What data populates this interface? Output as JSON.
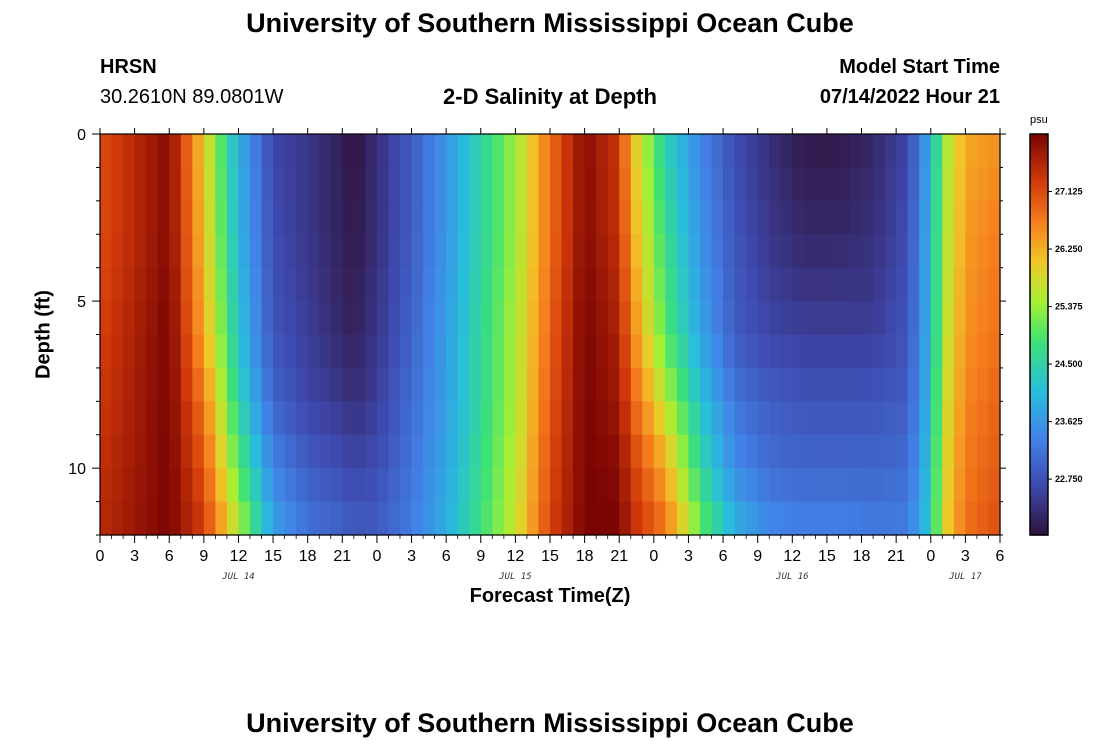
{
  "header": {
    "title": "University of Southern Mississippi Ocean Cube",
    "station": "HRSN",
    "coords": "30.2610N  89.0801W",
    "subtitle": "2-D Salinity at Depth",
    "model_label": "Model Start Time",
    "model_time": "07/14/2022 Hour 21",
    "footer_title": "University of Southern Mississippi Ocean Cube"
  },
  "chart_data": {
    "type": "heatmap",
    "title": "2-D Salinity at Depth",
    "xlabel": "Forecast Time(Z)",
    "ylabel": "Depth (ft)",
    "colorbar_unit": "psu",
    "colorbar_ticks": [
      "27.125",
      "26.250",
      "25.375",
      "24.500",
      "23.625",
      "22.750"
    ],
    "colorbar_tick_values": [
      27.125,
      26.25,
      25.375,
      24.5,
      23.625,
      22.75
    ],
    "value_range": [
      21.9,
      28.0
    ],
    "x_range_hours": [
      0,
      78
    ],
    "y_range_ft": [
      0,
      12
    ],
    "x_tick_labels": [
      "0",
      "3",
      "6",
      "9",
      "12",
      "15",
      "18",
      "21",
      "0",
      "3",
      "6",
      "9",
      "12",
      "15",
      "18",
      "21",
      "0",
      "3",
      "6",
      "9",
      "12",
      "15",
      "18",
      "21",
      "0",
      "3",
      "6"
    ],
    "y_tick_labels": [
      "0",
      "5",
      "10"
    ],
    "y_tick_values": [
      0,
      5,
      10
    ],
    "date_labels": [
      {
        "text": "JUL 14",
        "hour": 12
      },
      {
        "text": "JUL 15",
        "hour": 36
      },
      {
        "text": "JUL 16",
        "hour": 60
      },
      {
        "text": "JUL 17",
        "hour": 75
      }
    ],
    "time_hours": [
      0,
      6,
      9,
      12,
      15,
      18,
      21,
      22,
      24,
      27,
      30,
      33,
      36,
      39,
      42,
      45,
      46,
      49,
      52,
      55,
      58,
      61,
      64,
      67,
      70,
      72,
      73,
      75,
      78
    ],
    "depth_ft": [
      0,
      3,
      6,
      8,
      10,
      12
    ],
    "salinity_grid": [
      [
        27.1,
        27.9,
        26.0,
        23.9,
        22.6,
        22.4,
        22.1,
        21.9,
        22.3,
        22.9,
        23.6,
        24.5,
        25.4,
        26.8,
        27.9,
        27.3,
        26.2,
        24.4,
        23.4,
        22.7,
        22.3,
        22.0,
        22.0,
        22.2,
        22.6,
        23.9,
        25.3,
        26.3,
        26.5
      ],
      [
        27.1,
        27.9,
        26.1,
        24.0,
        22.7,
        22.4,
        22.1,
        22.0,
        22.3,
        22.9,
        23.6,
        24.5,
        25.4,
        26.8,
        27.9,
        27.4,
        26.4,
        24.7,
        23.6,
        22.8,
        22.4,
        22.2,
        22.2,
        22.3,
        22.7,
        24.0,
        25.4,
        26.4,
        26.7
      ],
      [
        27.2,
        28.0,
        26.3,
        24.2,
        22.8,
        22.5,
        22.2,
        22.1,
        22.4,
        23.0,
        23.7,
        24.6,
        25.5,
        26.9,
        28.0,
        27.6,
        26.7,
        25.0,
        23.8,
        22.9,
        22.6,
        22.5,
        22.5,
        22.5,
        22.8,
        24.0,
        25.5,
        26.5,
        26.8
      ],
      [
        27.3,
        28.0,
        26.7,
        24.5,
        23.0,
        22.6,
        22.4,
        22.3,
        22.5,
        23.1,
        23.7,
        24.6,
        25.5,
        27.0,
        28.0,
        27.7,
        27.0,
        25.6,
        24.2,
        23.2,
        22.9,
        22.8,
        22.8,
        22.8,
        22.9,
        24.1,
        25.6,
        26.6,
        26.9
      ],
      [
        27.4,
        28.0,
        27.0,
        25.0,
        23.4,
        22.9,
        22.7,
        22.6,
        22.7,
        23.2,
        23.8,
        24.7,
        25.6,
        27.1,
        28.0,
        27.9,
        27.3,
        26.3,
        24.6,
        23.5,
        23.1,
        23.0,
        23.0,
        23.0,
        23.1,
        24.2,
        25.7,
        26.7,
        27.0
      ],
      [
        27.5,
        28.0,
        27.3,
        25.6,
        23.8,
        23.2,
        23.0,
        22.9,
        22.9,
        23.3,
        23.9,
        24.8,
        25.7,
        27.2,
        28.0,
        28.0,
        27.5,
        26.8,
        25.2,
        24.0,
        23.5,
        23.4,
        23.4,
        23.3,
        23.3,
        24.3,
        25.8,
        26.8,
        27.1
      ]
    ]
  }
}
